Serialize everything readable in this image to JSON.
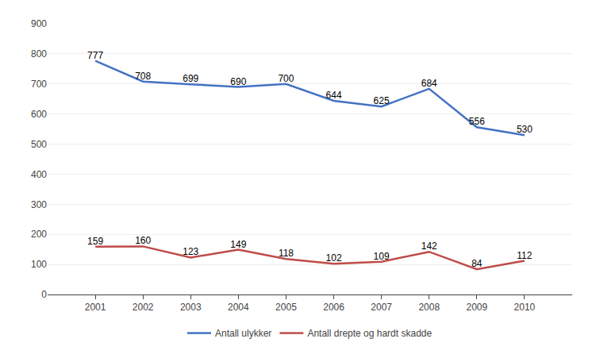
{
  "chart_data": {
    "type": "line",
    "x": [
      2001,
      2002,
      2003,
      2004,
      2005,
      2006,
      2007,
      2008,
      2009,
      2010
    ],
    "series": [
      {
        "name": "Antall ulykker",
        "color": "#4472C4",
        "values": [
          777,
          708,
          699,
          690,
          700,
          644,
          625,
          684,
          556,
          530
        ]
      },
      {
        "name": "Antall drepte og hardt skadde",
        "color": "#BE4B48",
        "values": [
          159,
          160,
          123,
          149,
          118,
          102,
          109,
          142,
          84,
          112
        ]
      }
    ],
    "xlim": [
      2000,
      2011
    ],
    "xticks": [
      2001,
      2002,
      2003,
      2004,
      2005,
      2006,
      2007,
      2008,
      2009,
      2010
    ],
    "ylim": [
      0,
      900
    ],
    "yticks": [
      0,
      100,
      200,
      300,
      400,
      500,
      600,
      700,
      800,
      900
    ],
    "grid": true,
    "data_labels": true,
    "legend": "bottom"
  }
}
